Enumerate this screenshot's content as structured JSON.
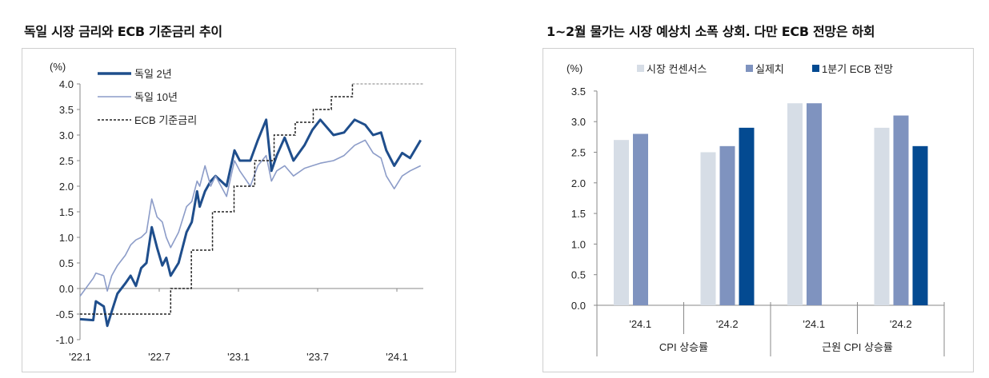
{
  "chart_data": [
    {
      "type": "line",
      "title": "독일 시장 금리와 ECB 기준금리 추이",
      "ylabel": "(%)",
      "ylim": [
        -1.0,
        4.0
      ],
      "yticks": [
        "4.0",
        "3.5",
        "3.0",
        "2.5",
        "2.0",
        "1.5",
        "1.0",
        "0.5",
        "0.0",
        "-0.5",
        "-1.0"
      ],
      "xlim": [
        "2022-01-01",
        "2024-03-01"
      ],
      "xticks": [
        {
          "date": "2022-01-01",
          "label": "'22.1"
        },
        {
          "date": "2022-07-01",
          "label": "'22.7"
        },
        {
          "date": "2023-01-01",
          "label": "'23.1"
        },
        {
          "date": "2023-07-01",
          "label": "'23.7"
        },
        {
          "date": "2024-01-01",
          "label": "'24.1"
        }
      ],
      "legend_placement": "top-left",
      "grid": false,
      "series": [
        {
          "name": "독일 2년",
          "color": "#1f4e8c",
          "style": "solid-thick",
          "x": [
            "2022-01-01",
            "2022-02-01",
            "2022-02-07",
            "2022-02-25",
            "2022-03-03",
            "2022-03-13",
            "2022-03-26",
            "2022-04-14",
            "2022-04-26",
            "2022-05-08",
            "2022-05-20",
            "2022-06-02",
            "2022-06-14",
            "2022-06-26",
            "2022-07-08",
            "2022-07-17",
            "2022-07-27",
            "2022-08-15",
            "2022-09-03",
            "2022-09-15",
            "2022-09-27",
            "2022-10-03",
            "2022-10-15",
            "2022-10-28",
            "2022-11-09",
            "2022-12-04",
            "2022-12-22",
            "2023-01-04",
            "2023-01-28",
            "2023-02-15",
            "2023-03-04",
            "2023-03-16",
            "2023-03-28",
            "2023-04-16",
            "2023-05-06",
            "2023-06-01",
            "2023-06-19",
            "2023-07-07",
            "2023-08-07",
            "2023-09-01",
            "2023-09-25",
            "2023-10-19",
            "2023-11-07",
            "2023-11-25",
            "2023-12-07",
            "2023-12-25",
            "2024-01-13",
            "2024-02-01",
            "2024-02-25"
          ],
          "values": [
            -0.6,
            -0.62,
            -0.25,
            -0.35,
            -0.73,
            -0.45,
            -0.1,
            0.1,
            0.25,
            0.05,
            0.4,
            0.5,
            1.2,
            0.8,
            0.45,
            0.6,
            0.25,
            0.5,
            1.1,
            1.3,
            1.9,
            1.6,
            1.9,
            2.1,
            2.2,
            2.0,
            2.7,
            2.5,
            2.5,
            2.9,
            3.3,
            2.3,
            2.6,
            2.95,
            2.5,
            2.8,
            3.1,
            3.3,
            3.0,
            3.05,
            3.3,
            3.2,
            3.0,
            3.05,
            2.7,
            2.4,
            2.65,
            2.55,
            2.9
          ]
        },
        {
          "name": "독일 10년",
          "color": "#8c9cc8",
          "style": "solid-thin",
          "x": [
            "2022-01-01",
            "2022-02-01",
            "2022-02-07",
            "2022-02-25",
            "2022-03-03",
            "2022-03-13",
            "2022-03-26",
            "2022-04-14",
            "2022-04-26",
            "2022-05-08",
            "2022-05-20",
            "2022-06-02",
            "2022-06-14",
            "2022-06-26",
            "2022-07-08",
            "2022-07-17",
            "2022-07-27",
            "2022-08-15",
            "2022-09-03",
            "2022-09-15",
            "2022-09-27",
            "2022-10-03",
            "2022-10-15",
            "2022-10-28",
            "2022-11-09",
            "2022-12-04",
            "2022-12-22",
            "2023-01-04",
            "2023-01-28",
            "2023-02-15",
            "2023-03-04",
            "2023-03-16",
            "2023-03-28",
            "2023-04-16",
            "2023-05-06",
            "2023-06-01",
            "2023-06-19",
            "2023-07-07",
            "2023-08-07",
            "2023-09-01",
            "2023-09-25",
            "2023-10-19",
            "2023-11-07",
            "2023-11-25",
            "2023-12-07",
            "2023-12-25",
            "2024-01-13",
            "2024-02-01",
            "2024-02-25"
          ],
          "values": [
            -0.15,
            0.2,
            0.3,
            0.25,
            -0.05,
            0.25,
            0.45,
            0.65,
            0.85,
            0.95,
            1.0,
            1.1,
            1.75,
            1.4,
            1.3,
            1.0,
            0.8,
            1.1,
            1.6,
            1.7,
            2.1,
            2.0,
            2.4,
            2.0,
            2.2,
            1.8,
            2.5,
            2.3,
            2.0,
            2.4,
            2.6,
            2.1,
            2.3,
            2.4,
            2.2,
            2.35,
            2.4,
            2.45,
            2.5,
            2.6,
            2.8,
            2.9,
            2.65,
            2.55,
            2.2,
            1.95,
            2.2,
            2.3,
            2.4
          ]
        },
        {
          "name": "ECB 기준금리",
          "color": "#222222",
          "style": "dashed-step",
          "future_color": "#9a9a9a",
          "x": [
            "2022-01-01",
            "2022-07-27",
            "2022-09-14",
            "2022-11-02",
            "2022-12-21",
            "2023-02-08",
            "2023-03-22",
            "2023-05-10",
            "2023-06-21",
            "2023-08-02",
            "2023-09-20",
            "2024-03-01"
          ],
          "values": [
            -0.5,
            0.0,
            0.75,
            1.5,
            2.0,
            2.5,
            3.0,
            3.25,
            3.5,
            3.75,
            4.0,
            4.0
          ]
        }
      ]
    },
    {
      "type": "bar",
      "title": "1~2월 물가는 시장 예상치 소폭 상회. 다만 ECB 전망은 하회",
      "ylabel": "(%)",
      "ylim": [
        0.0,
        3.5
      ],
      "yticks": [
        "3.5",
        "3.0",
        "2.5",
        "2.0",
        "1.5",
        "1.0",
        "0.5",
        "0.0"
      ],
      "legend_placement": "top",
      "grid": false,
      "categories": [
        "'24.1",
        "'24.2",
        "'24.1",
        "'24.2"
      ],
      "groups": [
        {
          "label": "CPI 상승률",
          "span": [
            0,
            1
          ]
        },
        {
          "label": "근원 CPI 상승률",
          "span": [
            2,
            3
          ]
        }
      ],
      "series": [
        {
          "name": "시장 컨센서스",
          "color": "#d6dde6",
          "values": [
            2.7,
            2.5,
            3.3,
            2.9
          ]
        },
        {
          "name": "실제치",
          "color": "#7f93bf",
          "values": [
            2.8,
            2.6,
            3.3,
            3.1
          ]
        },
        {
          "name": "1분기 ECB 전망",
          "color": "#034a91",
          "values": [
            null,
            2.9,
            null,
            2.6
          ]
        }
      ]
    }
  ]
}
